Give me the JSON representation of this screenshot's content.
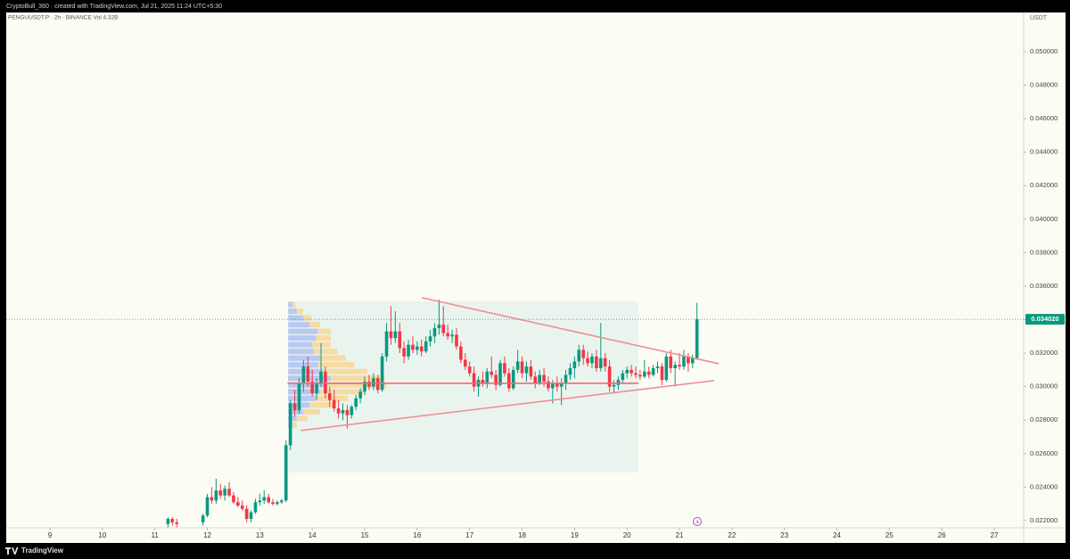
{
  "header": "CryptoBull_360 · created with TradingView.com, Jul 21, 2025 11:24 UTC+5:30",
  "footer": "TradingView",
  "chart_data": {
    "type": "candlestick",
    "legend_text": "PENGUUSDT.P · 2h · BINANCE   Vol 4.32B",
    "y_axis_label": "USDT",
    "up_color": "#089981",
    "down_color": "#f23645",
    "xlim": [
      8.167,
      27.56
    ],
    "ylim": [
      0.02157,
      0.05234
    ],
    "xticks": [
      9,
      10,
      11,
      12,
      13,
      14,
      15,
      16,
      17,
      18,
      19,
      20,
      21,
      22,
      23,
      24,
      25,
      26,
      27
    ],
    "yticks": [
      {
        "value": 0.022,
        "label": "0.022000"
      },
      {
        "value": 0.024,
        "label": "0.024000"
      },
      {
        "value": 0.026,
        "label": "0.026000"
      },
      {
        "value": 0.028,
        "label": "0.028000"
      },
      {
        "value": 0.03,
        "label": "0.030000"
      },
      {
        "value": 0.032,
        "label": "0.032000"
      },
      {
        "value": 0.034,
        "label": "0.034000"
      },
      {
        "value": 0.036,
        "label": "0.036000"
      },
      {
        "value": 0.038,
        "label": "0.038000"
      },
      {
        "value": 0.04,
        "label": "0.040000"
      },
      {
        "value": 0.042,
        "label": "0.042000"
      },
      {
        "value": 0.044,
        "label": "0.044000"
      },
      {
        "value": 0.046,
        "label": "0.046000"
      },
      {
        "value": 0.048,
        "label": "0.048000"
      },
      {
        "value": 0.05,
        "label": "0.050000"
      }
    ],
    "last_label": "0.034020",
    "x": [
      11.25,
      11.333,
      11.417,
      11.917,
      12.0,
      12.083,
      12.167,
      12.25,
      12.333,
      12.417,
      12.5,
      12.583,
      12.667,
      12.75,
      12.833,
      12.917,
      13.0,
      13.083,
      13.167,
      13.25,
      13.333,
      13.417,
      13.5,
      13.583,
      13.667,
      13.75,
      13.833,
      13.917,
      14.0,
      14.083,
      14.167,
      14.25,
      14.333,
      14.417,
      14.5,
      14.583,
      14.667,
      14.75,
      14.833,
      14.917,
      15.0,
      15.083,
      15.167,
      15.25,
      15.333,
      15.417,
      15.5,
      15.583,
      15.667,
      15.75,
      15.833,
      15.917,
      16.0,
      16.083,
      16.167,
      16.25,
      16.333,
      16.417,
      16.5,
      16.583,
      16.667,
      16.75,
      16.833,
      16.917,
      17.0,
      17.083,
      17.167,
      17.25,
      17.333,
      17.417,
      17.5,
      17.583,
      17.667,
      17.75,
      17.833,
      17.917,
      18.0,
      18.083,
      18.167,
      18.25,
      18.333,
      18.417,
      18.5,
      18.583,
      18.667,
      18.75,
      18.833,
      18.917,
      19.0,
      19.083,
      19.167,
      19.25,
      19.333,
      19.417,
      19.5,
      19.583,
      19.667,
      19.75,
      19.833,
      19.917,
      20.0,
      20.083,
      20.167,
      20.25,
      20.333,
      20.417,
      20.5,
      20.583,
      20.667,
      20.75,
      20.833,
      20.917,
      21.0,
      21.083,
      21.167,
      21.25,
      21.333
    ],
    "values": [
      [
        0.0218,
        0.0222,
        0.0216,
        0.0221
      ],
      [
        0.0221,
        0.0222,
        0.0217,
        0.0219
      ],
      [
        0.0219,
        0.0221,
        0.0216,
        0.0218
      ],
      [
        0.0219,
        0.0224,
        0.0217,
        0.0223
      ],
      [
        0.0223,
        0.0236,
        0.0222,
        0.0234
      ],
      [
        0.0234,
        0.024,
        0.023,
        0.0232
      ],
      [
        0.0232,
        0.0245,
        0.023,
        0.0238
      ],
      [
        0.0238,
        0.0242,
        0.0233,
        0.0235
      ],
      [
        0.0235,
        0.0241,
        0.0232,
        0.0239
      ],
      [
        0.0239,
        0.0243,
        0.0234,
        0.0235
      ],
      [
        0.0235,
        0.0237,
        0.023,
        0.0231
      ],
      [
        0.0231,
        0.0234,
        0.0228,
        0.0229
      ],
      [
        0.0229,
        0.0232,
        0.0226,
        0.0227
      ],
      [
        0.0227,
        0.0229,
        0.0219,
        0.0221
      ],
      [
        0.0221,
        0.0226,
        0.0219,
        0.0225
      ],
      [
        0.0225,
        0.0233,
        0.0224,
        0.0231
      ],
      [
        0.0231,
        0.0236,
        0.0229,
        0.0232
      ],
      [
        0.0232,
        0.0238,
        0.023,
        0.0234
      ],
      [
        0.0234,
        0.0236,
        0.023,
        0.0231
      ],
      [
        0.0231,
        0.0233,
        0.0229,
        0.023
      ],
      [
        0.023,
        0.0232,
        0.0229,
        0.0231
      ],
      [
        0.0231,
        0.0233,
        0.023,
        0.0232
      ],
      [
        0.0232,
        0.0268,
        0.0231,
        0.0265
      ],
      [
        0.0265,
        0.0292,
        0.0262,
        0.029
      ],
      [
        0.029,
        0.0298,
        0.0282,
        0.0286
      ],
      [
        0.0286,
        0.0305,
        0.0284,
        0.0302
      ],
      [
        0.0302,
        0.0316,
        0.0297,
        0.0312
      ],
      [
        0.0312,
        0.0318,
        0.03,
        0.0303
      ],
      [
        0.0303,
        0.031,
        0.0294,
        0.0296
      ],
      [
        0.0296,
        0.0305,
        0.0292,
        0.0302
      ],
      [
        0.0302,
        0.0326,
        0.03,
        0.0309
      ],
      [
        0.0309,
        0.0312,
        0.0293,
        0.0296
      ],
      [
        0.0296,
        0.03,
        0.0288,
        0.0292
      ],
      [
        0.0292,
        0.0298,
        0.0285,
        0.0287
      ],
      [
        0.0287,
        0.0292,
        0.0281,
        0.0284
      ],
      [
        0.0284,
        0.029,
        0.028,
        0.0286
      ],
      [
        0.0286,
        0.0289,
        0.0275,
        0.0283
      ],
      [
        0.0283,
        0.0289,
        0.0281,
        0.0288
      ],
      [
        0.0288,
        0.0295,
        0.0286,
        0.0293
      ],
      [
        0.0293,
        0.0299,
        0.029,
        0.0297
      ],
      [
        0.0297,
        0.0306,
        0.0295,
        0.0303
      ],
      [
        0.0303,
        0.0307,
        0.0298,
        0.03
      ],
      [
        0.03,
        0.0308,
        0.0298,
        0.0305
      ],
      [
        0.0305,
        0.0307,
        0.0296,
        0.0298
      ],
      [
        0.0298,
        0.032,
        0.0297,
        0.0318
      ],
      [
        0.0318,
        0.0338,
        0.0315,
        0.0333
      ],
      [
        0.0333,
        0.0348,
        0.0325,
        0.0329
      ],
      [
        0.0329,
        0.0345,
        0.0326,
        0.0333
      ],
      [
        0.0333,
        0.0338,
        0.032,
        0.0323
      ],
      [
        0.0323,
        0.0327,
        0.0314,
        0.0318
      ],
      [
        0.0318,
        0.0328,
        0.0316,
        0.0325
      ],
      [
        0.0325,
        0.033,
        0.032,
        0.0322
      ],
      [
        0.0322,
        0.0327,
        0.0319,
        0.0324
      ],
      [
        0.0324,
        0.0328,
        0.0318,
        0.0321
      ],
      [
        0.0321,
        0.033,
        0.032,
        0.0327
      ],
      [
        0.0327,
        0.0334,
        0.0324,
        0.033
      ],
      [
        0.033,
        0.0338,
        0.0326,
        0.0335
      ],
      [
        0.0335,
        0.0352,
        0.0331,
        0.0337
      ],
      [
        0.0337,
        0.0348,
        0.033,
        0.0332
      ],
      [
        0.0332,
        0.0337,
        0.0328,
        0.033
      ],
      [
        0.033,
        0.0334,
        0.0326,
        0.0331
      ],
      [
        0.0331,
        0.0335,
        0.0322,
        0.0324
      ],
      [
        0.0324,
        0.0327,
        0.0314,
        0.0316
      ],
      [
        0.0316,
        0.032,
        0.031,
        0.0312
      ],
      [
        0.0312,
        0.0315,
        0.0306,
        0.0308
      ],
      [
        0.0308,
        0.0312,
        0.0297,
        0.03
      ],
      [
        0.03,
        0.0306,
        0.0294,
        0.0304
      ],
      [
        0.0304,
        0.0309,
        0.03,
        0.0302
      ],
      [
        0.0302,
        0.0311,
        0.0299,
        0.0309
      ],
      [
        0.0309,
        0.0318,
        0.0305,
        0.0307
      ],
      [
        0.0307,
        0.031,
        0.0298,
        0.0301
      ],
      [
        0.0301,
        0.0316,
        0.03,
        0.0314
      ],
      [
        0.0314,
        0.0318,
        0.0306,
        0.0308
      ],
      [
        0.0308,
        0.0311,
        0.0297,
        0.0299
      ],
      [
        0.0299,
        0.0312,
        0.0298,
        0.031
      ],
      [
        0.031,
        0.0322,
        0.0308,
        0.0315
      ],
      [
        0.0315,
        0.0318,
        0.0305,
        0.0308
      ],
      [
        0.0308,
        0.0315,
        0.0303,
        0.0312
      ],
      [
        0.0312,
        0.0316,
        0.0304,
        0.0306
      ],
      [
        0.0306,
        0.0309,
        0.0299,
        0.0302
      ],
      [
        0.0302,
        0.031,
        0.0301,
        0.0307
      ],
      [
        0.0307,
        0.0311,
        0.03,
        0.0303
      ],
      [
        0.0303,
        0.0306,
        0.0297,
        0.0299
      ],
      [
        0.0299,
        0.0304,
        0.029,
        0.0302
      ],
      [
        0.0302,
        0.0306,
        0.0297,
        0.03
      ],
      [
        0.03,
        0.0305,
        0.0289,
        0.0302
      ],
      [
        0.0302,
        0.031,
        0.0298,
        0.0307
      ],
      [
        0.0307,
        0.0314,
        0.0304,
        0.0311
      ],
      [
        0.0311,
        0.0318,
        0.0305,
        0.0315
      ],
      [
        0.0315,
        0.0325,
        0.0312,
        0.0322
      ],
      [
        0.0322,
        0.0325,
        0.0313,
        0.0317
      ],
      [
        0.0317,
        0.0321,
        0.0312,
        0.0314
      ],
      [
        0.0314,
        0.032,
        0.0311,
        0.0318
      ],
      [
        0.0318,
        0.0322,
        0.0309,
        0.0311
      ],
      [
        0.0311,
        0.0338,
        0.0309,
        0.0317
      ],
      [
        0.0317,
        0.032,
        0.0309,
        0.0312
      ],
      [
        0.0312,
        0.0316,
        0.0297,
        0.03
      ],
      [
        0.03,
        0.0304,
        0.0296,
        0.0301
      ],
      [
        0.0301,
        0.0306,
        0.0298,
        0.0304
      ],
      [
        0.0304,
        0.031,
        0.0302,
        0.0308
      ],
      [
        0.0308,
        0.0312,
        0.0305,
        0.031
      ],
      [
        0.031,
        0.0313,
        0.0306,
        0.0308
      ],
      [
        0.0308,
        0.0312,
        0.0305,
        0.0307
      ],
      [
        0.0307,
        0.031,
        0.0304,
        0.0306
      ],
      [
        0.0306,
        0.0316,
        0.0305,
        0.0309
      ],
      [
        0.0309,
        0.0312,
        0.0305,
        0.0307
      ],
      [
        0.0307,
        0.0313,
        0.0306,
        0.0311
      ],
      [
        0.0311,
        0.0315,
        0.0308,
        0.0312
      ],
      [
        0.0312,
        0.0314,
        0.0301,
        0.0304
      ],
      [
        0.0304,
        0.032,
        0.0303,
        0.0318
      ],
      [
        0.0318,
        0.0322,
        0.0308,
        0.0311
      ],
      [
        0.0311,
        0.0315,
        0.03,
        0.0313
      ],
      [
        0.0313,
        0.032,
        0.031,
        0.0312
      ],
      [
        0.0312,
        0.0322,
        0.031,
        0.0318
      ],
      [
        0.0318,
        0.032,
        0.0309,
        0.0314
      ],
      [
        0.0314,
        0.0319,
        0.0311,
        0.0317
      ],
      [
        0.0317,
        0.035,
        0.0316,
        0.03402
      ]
    ],
    "range_box": {
      "x": [
        13.54,
        20.22
      ],
      "y": [
        0.02487,
        0.03509
      ],
      "color": "#e3f1ec"
    },
    "volume_profile": {
      "price": [
        0.0349,
        0.0345,
        0.0341,
        0.0337,
        0.0333,
        0.0329,
        0.0325,
        0.0321,
        0.0317,
        0.0313,
        0.0309,
        0.0305,
        0.0301,
        0.0297,
        0.0293,
        0.0289,
        0.0285,
        0.0281,
        0.0277
      ],
      "up": [
        4,
        8,
        14,
        20,
        28,
        26,
        22,
        24,
        30,
        28,
        32,
        40,
        36,
        30,
        26,
        20,
        14,
        8,
        4
      ],
      "down": [
        3,
        6,
        8,
        10,
        12,
        14,
        18,
        22,
        24,
        34,
        42,
        50,
        56,
        40,
        30,
        22,
        16,
        10,
        4
      ],
      "up_color": "#b8c9f2",
      "down_color": "#f6dca3"
    },
    "lines": [
      {
        "x": [
          16.09,
          21.75
        ],
        "y": [
          0.03531,
          0.03137
        ],
        "color": "#ef8d95"
      },
      {
        "x": [
          13.78,
          21.66
        ],
        "y": [
          0.02738,
          0.03036
        ],
        "color": "#ef8d95"
      },
      {
        "x": [
          13.53,
          20.22
        ],
        "y": [
          0.0302,
          0.0302
        ],
        "color": "#ef6a75"
      }
    ]
  }
}
